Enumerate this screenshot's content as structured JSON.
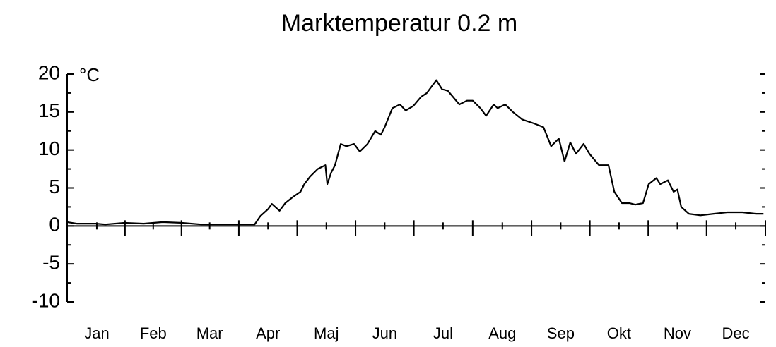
{
  "chart_data": {
    "type": "line",
    "title": "Marktemperatur 0.2 m",
    "y_unit": "°C",
    "xlim": [
      0,
      365
    ],
    "ylim": [
      -10,
      20
    ],
    "yticks": [
      -10,
      -5,
      0,
      5,
      10,
      15,
      20
    ],
    "xticks": [
      {
        "value": 15.5,
        "label": "Jan"
      },
      {
        "value": 45,
        "label": "Feb"
      },
      {
        "value": 74.5,
        "label": "Mar"
      },
      {
        "value": 105,
        "label": "Apr"
      },
      {
        "value": 135.5,
        "label": "Maj"
      },
      {
        "value": 166,
        "label": "Jun"
      },
      {
        "value": 196.5,
        "label": "Jul"
      },
      {
        "value": 227.5,
        "label": "Aug"
      },
      {
        "value": 258,
        "label": "Sep"
      },
      {
        "value": 288.5,
        "label": "Okt"
      },
      {
        "value": 319,
        "label": "Nov"
      },
      {
        "value": 349.5,
        "label": "Dec"
      }
    ],
    "series": [
      {
        "color": "#000000",
        "x": [
          0,
          5,
          15,
          20,
          30,
          40,
          50,
          60,
          70,
          80,
          90,
          98,
          101,
          105,
          107,
          111,
          114,
          118,
          122,
          124,
          127,
          131,
          135,
          136,
          138,
          140,
          143,
          146,
          150,
          153,
          157,
          161,
          164,
          166,
          170,
          174,
          177,
          181,
          185,
          188,
          193,
          196,
          199,
          205,
          209,
          212,
          216,
          219,
          223,
          225,
          229,
          233,
          238,
          244,
          249,
          253,
          257,
          260,
          263,
          266,
          270,
          273,
          278,
          283,
          286,
          290,
          294,
          297,
          301,
          304,
          308,
          310,
          314,
          317,
          319,
          321,
          325,
          331,
          338,
          345,
          353,
          360,
          364
        ],
        "values": [
          0.5,
          0.3,
          0.3,
          0.2,
          0.4,
          0.3,
          0.5,
          0.4,
          0.2,
          0.2,
          0.2,
          0.2,
          1.3,
          2.2,
          2.9,
          2.0,
          3.0,
          3.8,
          4.5,
          5.5,
          6.5,
          7.5,
          8.0,
          5.5,
          7.0,
          8.0,
          10.8,
          10.5,
          10.8,
          9.8,
          10.8,
          12.5,
          12.0,
          13.0,
          15.5,
          16.0,
          15.2,
          15.8,
          17.0,
          17.5,
          19.2,
          18.0,
          17.8,
          16.0,
          16.5,
          16.5,
          15.5,
          14.5,
          16.0,
          15.5,
          16.0,
          15.0,
          14.0,
          13.5,
          13.0,
          10.5,
          11.5,
          8.5,
          11.0,
          9.5,
          10.8,
          9.5,
          8.0,
          8.0,
          4.5,
          3.0,
          3.0,
          2.8,
          3.0,
          5.5,
          6.3,
          5.5,
          6.0,
          4.5,
          4.8,
          2.5,
          1.6,
          1.4,
          1.6,
          1.8,
          1.8,
          1.6,
          1.6
        ]
      }
    ]
  }
}
